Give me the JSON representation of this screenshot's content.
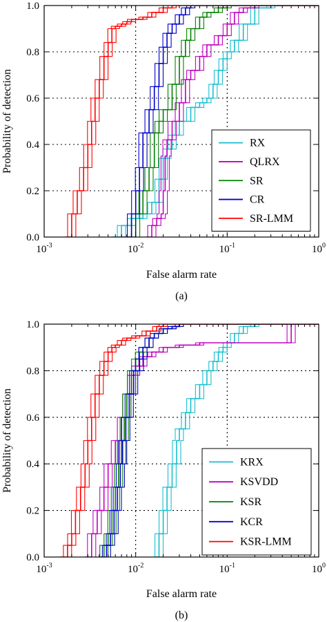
{
  "chart_data": [
    {
      "type": "line",
      "caption": "(a)",
      "xlabel": "False alarm rate",
      "ylabel": "Probability of detection",
      "xscale": "log",
      "xlim": [
        0.001,
        1
      ],
      "ylim": [
        0,
        1
      ],
      "xticks": [
        0.001,
        0.01,
        0.1,
        1
      ],
      "xtick_labels": [
        {
          "base": "10",
          "exp": "-3"
        },
        {
          "base": "10",
          "exp": "-2"
        },
        {
          "base": "10",
          "exp": "-1"
        },
        {
          "base": "10",
          "exp": "0"
        }
      ],
      "yticks": [
        "0.0",
        "0.2",
        "0.4",
        "0.6",
        "0.8",
        "1.0"
      ],
      "grid": true,
      "legend_position": "lower-right",
      "series": [
        {
          "name": "RX",
          "color": "#17becf",
          "x": [
            0.0055,
            0.007,
            0.009,
            0.012,
            0.015,
            0.018,
            0.02,
            0.022,
            0.025,
            0.03,
            0.04,
            0.05,
            0.06,
            0.07,
            0.08,
            0.09,
            0.1,
            0.12,
            0.15,
            0.2,
            0.3
          ],
          "y": [
            0.0,
            0.05,
            0.08,
            0.1,
            0.15,
            0.25,
            0.34,
            0.38,
            0.44,
            0.5,
            0.56,
            0.58,
            0.6,
            0.66,
            0.72,
            0.77,
            0.8,
            0.85,
            0.92,
            0.99,
            1.0
          ]
        },
        {
          "name": "QLRX",
          "color": "#bf00bf",
          "x": [
            0.013,
            0.015,
            0.017,
            0.019,
            0.02,
            0.021,
            0.022,
            0.025,
            0.03,
            0.035,
            0.04,
            0.05,
            0.06,
            0.08,
            0.1,
            0.12,
            0.15,
            0.2
          ],
          "y": [
            0.0,
            0.05,
            0.08,
            0.1,
            0.2,
            0.35,
            0.42,
            0.5,
            0.58,
            0.68,
            0.72,
            0.78,
            0.83,
            0.87,
            0.92,
            0.97,
            0.99,
            1.0
          ]
        },
        {
          "name": "SR",
          "color": "#008000",
          "x": [
            0.008,
            0.01,
            0.012,
            0.014,
            0.016,
            0.018,
            0.02,
            0.025,
            0.03,
            0.035,
            0.04,
            0.05,
            0.06,
            0.08,
            0.1,
            0.12
          ],
          "y": [
            0.0,
            0.1,
            0.2,
            0.3,
            0.45,
            0.5,
            0.55,
            0.66,
            0.78,
            0.85,
            0.9,
            0.95,
            0.97,
            0.99,
            1.0,
            1.0
          ]
        },
        {
          "name": "CR",
          "color": "#0000cc",
          "x": [
            0.007,
            0.009,
            0.01,
            0.011,
            0.012,
            0.014,
            0.016,
            0.018,
            0.02,
            0.022,
            0.025,
            0.03,
            0.035,
            0.04,
            0.05,
            0.06
          ],
          "y": [
            0.0,
            0.1,
            0.2,
            0.3,
            0.45,
            0.55,
            0.65,
            0.75,
            0.82,
            0.88,
            0.92,
            0.96,
            0.99,
            1.0,
            1.0,
            1.0
          ]
        },
        {
          "name": "SR-LMM",
          "color": "#ff0000",
          "x": [
            0.0017,
            0.002,
            0.0023,
            0.0027,
            0.003,
            0.0033,
            0.0036,
            0.004,
            0.0045,
            0.005,
            0.0055,
            0.006,
            0.007,
            0.008,
            0.009,
            0.01,
            0.012,
            0.015,
            0.02,
            0.025,
            0.03
          ],
          "y": [
            0.0,
            0.1,
            0.2,
            0.3,
            0.4,
            0.5,
            0.6,
            0.68,
            0.78,
            0.84,
            0.9,
            0.91,
            0.92,
            0.93,
            0.94,
            0.94,
            0.95,
            0.97,
            0.99,
            1.0,
            1.0
          ]
        }
      ]
    },
    {
      "type": "line",
      "caption": "(b)",
      "xlabel": "False alarm rate",
      "ylabel": "Probability of detection",
      "xscale": "log",
      "xlim": [
        0.001,
        1
      ],
      "ylim": [
        0,
        1
      ],
      "xticks": [
        0.001,
        0.01,
        0.1,
        1
      ],
      "xtick_labels": [
        {
          "base": "10",
          "exp": "-3"
        },
        {
          "base": "10",
          "exp": "-2"
        },
        {
          "base": "10",
          "exp": "-1"
        },
        {
          "base": "10",
          "exp": "0"
        }
      ],
      "yticks": [
        "0.0",
        "0.2",
        "0.4",
        "0.6",
        "0.8",
        "1.0"
      ],
      "grid": true,
      "legend_position": "lower-right",
      "series": [
        {
          "name": "KRX",
          "color": "#17becf",
          "x": [
            0.016,
            0.018,
            0.02,
            0.022,
            0.025,
            0.028,
            0.03,
            0.035,
            0.04,
            0.05,
            0.06,
            0.07,
            0.08,
            0.09,
            0.1,
            0.12,
            0.15,
            0.2
          ],
          "y": [
            0.0,
            0.1,
            0.2,
            0.3,
            0.4,
            0.5,
            0.55,
            0.62,
            0.68,
            0.74,
            0.8,
            0.84,
            0.88,
            0.9,
            0.92,
            0.96,
            0.99,
            1.0
          ]
        },
        {
          "name": "KSVDD",
          "color": "#bf00bf",
          "x": [
            0.0028,
            0.0033,
            0.0038,
            0.0045,
            0.005,
            0.006,
            0.007,
            0.008,
            0.009,
            0.01,
            0.012,
            0.015,
            0.02,
            0.03,
            0.05,
            0.1,
            0.2,
            0.3,
            0.45,
            0.5
          ],
          "y": [
            0.0,
            0.1,
            0.2,
            0.3,
            0.4,
            0.5,
            0.6,
            0.7,
            0.78,
            0.82,
            0.86,
            0.88,
            0.9,
            0.91,
            0.92,
            0.92,
            0.92,
            0.92,
            0.92,
            1.0
          ]
        },
        {
          "name": "KSR",
          "color": "#008000",
          "x": [
            0.004,
            0.0045,
            0.005,
            0.0055,
            0.006,
            0.0065,
            0.007,
            0.0075,
            0.008,
            0.009,
            0.01,
            0.011,
            0.012,
            0.014,
            0.016,
            0.02,
            0.025,
            0.03,
            0.04
          ],
          "y": [
            0.0,
            0.05,
            0.1,
            0.2,
            0.3,
            0.4,
            0.5,
            0.6,
            0.7,
            0.8,
            0.85,
            0.88,
            0.9,
            0.94,
            0.96,
            0.98,
            0.99,
            1.0,
            1.0
          ]
        },
        {
          "name": "KCR",
          "color": "#0000cc",
          "x": [
            0.0042,
            0.0048,
            0.0053,
            0.0058,
            0.0063,
            0.0068,
            0.0072,
            0.0078,
            0.0085,
            0.0095,
            0.011,
            0.012,
            0.014,
            0.016,
            0.02,
            0.025,
            0.03,
            0.04
          ],
          "y": [
            0.0,
            0.05,
            0.1,
            0.2,
            0.3,
            0.4,
            0.5,
            0.6,
            0.7,
            0.8,
            0.85,
            0.9,
            0.94,
            0.96,
            0.98,
            0.99,
            1.0,
            1.0
          ]
        },
        {
          "name": "KSR-LMM",
          "color": "#ff0000",
          "x": [
            0.0015,
            0.0018,
            0.002,
            0.0022,
            0.0025,
            0.0028,
            0.003,
            0.0033,
            0.0036,
            0.004,
            0.0045,
            0.005,
            0.0055,
            0.006,
            0.007,
            0.008,
            0.01,
            0.013,
            0.017,
            0.02,
            0.025
          ],
          "y": [
            0.0,
            0.05,
            0.1,
            0.2,
            0.3,
            0.4,
            0.5,
            0.6,
            0.7,
            0.78,
            0.84,
            0.88,
            0.9,
            0.91,
            0.93,
            0.94,
            0.95,
            0.97,
            0.99,
            1.0,
            1.0
          ]
        }
      ]
    }
  ]
}
